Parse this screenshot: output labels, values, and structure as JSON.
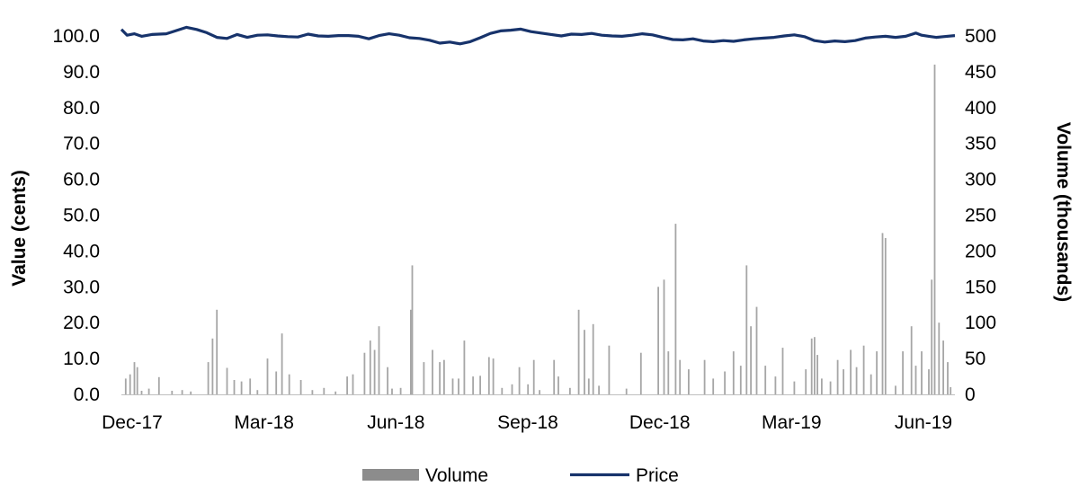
{
  "chart_data": {
    "type": "bar+line",
    "x_tick_labels": [
      "Dec-17",
      "Mar-18",
      "Jun-18",
      "Sep-18",
      "Dec-18",
      "Mar-19",
      "Jun-19"
    ],
    "x_range": [
      "2017-12-01",
      "2019-06-30"
    ],
    "left_axis": {
      "label": "Value (cents)",
      "ylim": [
        0,
        100
      ],
      "ticks": [
        "0.0",
        "10.0",
        "20.0",
        "30.0",
        "40.0",
        "50.0",
        "60.0",
        "70.0",
        "80.0",
        "90.0",
        "100.0"
      ]
    },
    "right_axis": {
      "label": "Volume (thousands)",
      "ylim": [
        0,
        500
      ],
      "ticks": [
        "0",
        "50",
        "100",
        "150",
        "200",
        "250",
        "300",
        "350",
        "400",
        "450",
        "500"
      ]
    },
    "series": [
      {
        "name": "Volume",
        "type": "bar",
        "axis": "right",
        "color": "#a6a6a6",
        "points": [
          [
            "2017-12-04",
            22
          ],
          [
            "2017-12-07",
            28
          ],
          [
            "2017-12-10",
            45
          ],
          [
            "2017-12-12",
            38
          ],
          [
            "2017-12-15",
            5
          ],
          [
            "2017-12-20",
            8
          ],
          [
            "2017-12-27",
            24
          ],
          [
            "2018-01-05",
            5
          ],
          [
            "2018-01-12",
            6
          ],
          [
            "2018-01-18",
            4
          ],
          [
            "2018-01-30",
            45
          ],
          [
            "2018-02-02",
            78
          ],
          [
            "2018-02-05",
            118
          ],
          [
            "2018-02-12",
            37
          ],
          [
            "2018-02-17",
            20
          ],
          [
            "2018-02-22",
            18
          ],
          [
            "2018-02-28",
            22
          ],
          [
            "2018-03-05",
            6
          ],
          [
            "2018-03-12",
            50
          ],
          [
            "2018-03-18",
            32
          ],
          [
            "2018-03-22",
            85
          ],
          [
            "2018-03-27",
            28
          ],
          [
            "2018-04-04",
            20
          ],
          [
            "2018-04-12",
            6
          ],
          [
            "2018-04-20",
            9
          ],
          [
            "2018-04-28",
            4
          ],
          [
            "2018-05-06",
            25
          ],
          [
            "2018-05-10",
            28
          ],
          [
            "2018-05-18",
            58
          ],
          [
            "2018-05-22",
            75
          ],
          [
            "2018-05-25",
            62
          ],
          [
            "2018-05-28",
            95
          ],
          [
            "2018-06-03",
            38
          ],
          [
            "2018-06-06",
            8
          ],
          [
            "2018-06-12",
            9
          ],
          [
            "2018-06-19",
            118
          ],
          [
            "2018-06-20",
            180
          ],
          [
            "2018-06-28",
            45
          ],
          [
            "2018-07-04",
            62
          ],
          [
            "2018-07-09",
            45
          ],
          [
            "2018-07-12",
            48
          ],
          [
            "2018-07-18",
            22
          ],
          [
            "2018-07-22",
            22
          ],
          [
            "2018-07-26",
            75
          ],
          [
            "2018-08-01",
            25
          ],
          [
            "2018-08-06",
            26
          ],
          [
            "2018-08-12",
            52
          ],
          [
            "2018-08-15",
            50
          ],
          [
            "2018-08-21",
            9
          ],
          [
            "2018-08-28",
            14
          ],
          [
            "2018-09-02",
            38
          ],
          [
            "2018-09-08",
            14
          ],
          [
            "2018-09-12",
            48
          ],
          [
            "2018-09-16",
            6
          ],
          [
            "2018-09-26",
            48
          ],
          [
            "2018-09-29",
            25
          ],
          [
            "2018-10-07",
            9
          ],
          [
            "2018-10-13",
            118
          ],
          [
            "2018-10-17",
            90
          ],
          [
            "2018-10-20",
            22
          ],
          [
            "2018-10-23",
            98
          ],
          [
            "2018-10-27",
            12
          ],
          [
            "2018-11-03",
            68
          ],
          [
            "2018-11-15",
            8
          ],
          [
            "2018-11-25",
            58
          ],
          [
            "2018-12-07",
            150
          ],
          [
            "2018-12-11",
            160
          ],
          [
            "2018-12-14",
            60
          ],
          [
            "2018-12-19",
            238
          ],
          [
            "2018-12-22",
            48
          ],
          [
            "2018-12-28",
            35
          ],
          [
            "2019-01-08",
            48
          ],
          [
            "2019-01-14",
            22
          ],
          [
            "2019-01-22",
            32
          ],
          [
            "2019-01-28",
            60
          ],
          [
            "2019-02-02",
            40
          ],
          [
            "2019-02-06",
            180
          ],
          [
            "2019-02-09",
            95
          ],
          [
            "2019-02-13",
            122
          ],
          [
            "2019-02-19",
            40
          ],
          [
            "2019-02-26",
            25
          ],
          [
            "2019-03-03",
            65
          ],
          [
            "2019-03-11",
            18
          ],
          [
            "2019-03-19",
            35
          ],
          [
            "2019-03-23",
            78
          ],
          [
            "2019-03-25",
            80
          ],
          [
            "2019-03-27",
            55
          ],
          [
            "2019-03-30",
            22
          ],
          [
            "2019-04-05",
            18
          ],
          [
            "2019-04-10",
            48
          ],
          [
            "2019-04-14",
            35
          ],
          [
            "2019-04-19",
            62
          ],
          [
            "2019-04-23",
            38
          ],
          [
            "2019-04-28",
            68
          ],
          [
            "2019-05-03",
            28
          ],
          [
            "2019-05-07",
            60
          ],
          [
            "2019-05-11",
            225
          ],
          [
            "2019-05-13",
            218
          ],
          [
            "2019-05-20",
            12
          ],
          [
            "2019-05-25",
            60
          ],
          [
            "2019-05-31",
            95
          ],
          [
            "2019-06-03",
            40
          ],
          [
            "2019-06-07",
            60
          ],
          [
            "2019-06-12",
            35
          ],
          [
            "2019-06-14",
            160
          ],
          [
            "2019-06-16",
            460
          ],
          [
            "2019-06-19",
            100
          ],
          [
            "2019-06-22",
            75
          ],
          [
            "2019-06-25",
            45
          ],
          [
            "2019-06-27",
            10
          ]
        ]
      },
      {
        "name": "Price",
        "type": "line",
        "axis": "left",
        "color": "#17336b",
        "points": [
          [
            "2017-12-01",
            101.8
          ],
          [
            "2017-12-05",
            100.2
          ],
          [
            "2017-12-10",
            100.6
          ],
          [
            "2017-12-15",
            99.9
          ],
          [
            "2017-12-22",
            100.4
          ],
          [
            "2018-01-01",
            100.6
          ],
          [
            "2018-01-08",
            101.5
          ],
          [
            "2018-01-15",
            102.4
          ],
          [
            "2018-01-22",
            101.8
          ],
          [
            "2018-01-29",
            100.9
          ],
          [
            "2018-02-05",
            99.6
          ],
          [
            "2018-02-12",
            99.3
          ],
          [
            "2018-02-19",
            100.4
          ],
          [
            "2018-02-26",
            99.6
          ],
          [
            "2018-03-05",
            100.2
          ],
          [
            "2018-03-12",
            100.3
          ],
          [
            "2018-03-19",
            100.0
          ],
          [
            "2018-03-26",
            99.8
          ],
          [
            "2018-04-02",
            99.7
          ],
          [
            "2018-04-09",
            100.5
          ],
          [
            "2018-04-16",
            100.0
          ],
          [
            "2018-04-23",
            99.9
          ],
          [
            "2018-04-30",
            100.1
          ],
          [
            "2018-05-07",
            100.1
          ],
          [
            "2018-05-14",
            99.9
          ],
          [
            "2018-05-21",
            99.2
          ],
          [
            "2018-05-28",
            100.1
          ],
          [
            "2018-06-04",
            100.6
          ],
          [
            "2018-06-11",
            100.2
          ],
          [
            "2018-06-18",
            99.5
          ],
          [
            "2018-06-25",
            99.3
          ],
          [
            "2018-07-02",
            98.8
          ],
          [
            "2018-07-09",
            98.0
          ],
          [
            "2018-07-16",
            98.3
          ],
          [
            "2018-07-23",
            97.8
          ],
          [
            "2018-07-30",
            98.4
          ],
          [
            "2018-08-06",
            99.5
          ],
          [
            "2018-08-13",
            100.7
          ],
          [
            "2018-08-20",
            101.4
          ],
          [
            "2018-08-27",
            101.6
          ],
          [
            "2018-09-03",
            101.9
          ],
          [
            "2018-09-10",
            101.2
          ],
          [
            "2018-09-17",
            100.8
          ],
          [
            "2018-09-24",
            100.4
          ],
          [
            "2018-10-01",
            100.0
          ],
          [
            "2018-10-08",
            100.5
          ],
          [
            "2018-10-15",
            100.4
          ],
          [
            "2018-10-22",
            100.7
          ],
          [
            "2018-10-29",
            100.2
          ],
          [
            "2018-11-05",
            100.0
          ],
          [
            "2018-11-12",
            99.9
          ],
          [
            "2018-11-19",
            100.2
          ],
          [
            "2018-11-26",
            100.6
          ],
          [
            "2018-12-03",
            100.3
          ],
          [
            "2018-12-10",
            99.6
          ],
          [
            "2018-12-17",
            99.0
          ],
          [
            "2018-12-24",
            98.9
          ],
          [
            "2018-12-31",
            99.2
          ],
          [
            "2019-01-07",
            98.6
          ],
          [
            "2019-01-14",
            98.4
          ],
          [
            "2019-01-21",
            98.7
          ],
          [
            "2019-01-28",
            98.5
          ],
          [
            "2019-02-04",
            98.9
          ],
          [
            "2019-02-11",
            99.2
          ],
          [
            "2019-02-18",
            99.4
          ],
          [
            "2019-02-25",
            99.6
          ],
          [
            "2019-03-04",
            100.0
          ],
          [
            "2019-03-11",
            100.3
          ],
          [
            "2019-03-18",
            99.8
          ],
          [
            "2019-03-25",
            98.7
          ],
          [
            "2019-04-01",
            98.3
          ],
          [
            "2019-04-08",
            98.6
          ],
          [
            "2019-04-15",
            98.4
          ],
          [
            "2019-04-22",
            98.7
          ],
          [
            "2019-04-29",
            99.4
          ],
          [
            "2019-05-06",
            99.7
          ],
          [
            "2019-05-13",
            99.9
          ],
          [
            "2019-05-20",
            99.6
          ],
          [
            "2019-05-27",
            99.9
          ],
          [
            "2019-06-03",
            100.8
          ],
          [
            "2019-06-07",
            100.2
          ],
          [
            "2019-06-12",
            99.9
          ],
          [
            "2019-06-17",
            99.6
          ],
          [
            "2019-06-22",
            99.8
          ],
          [
            "2019-06-30",
            100.1
          ]
        ]
      }
    ],
    "legend": {
      "placement": "bottom",
      "entries": [
        {
          "label": "Volume",
          "marker": "bar",
          "color": "#8c8c8c"
        },
        {
          "label": "Price",
          "marker": "line",
          "color": "#17336b"
        }
      ]
    },
    "grid": false
  }
}
